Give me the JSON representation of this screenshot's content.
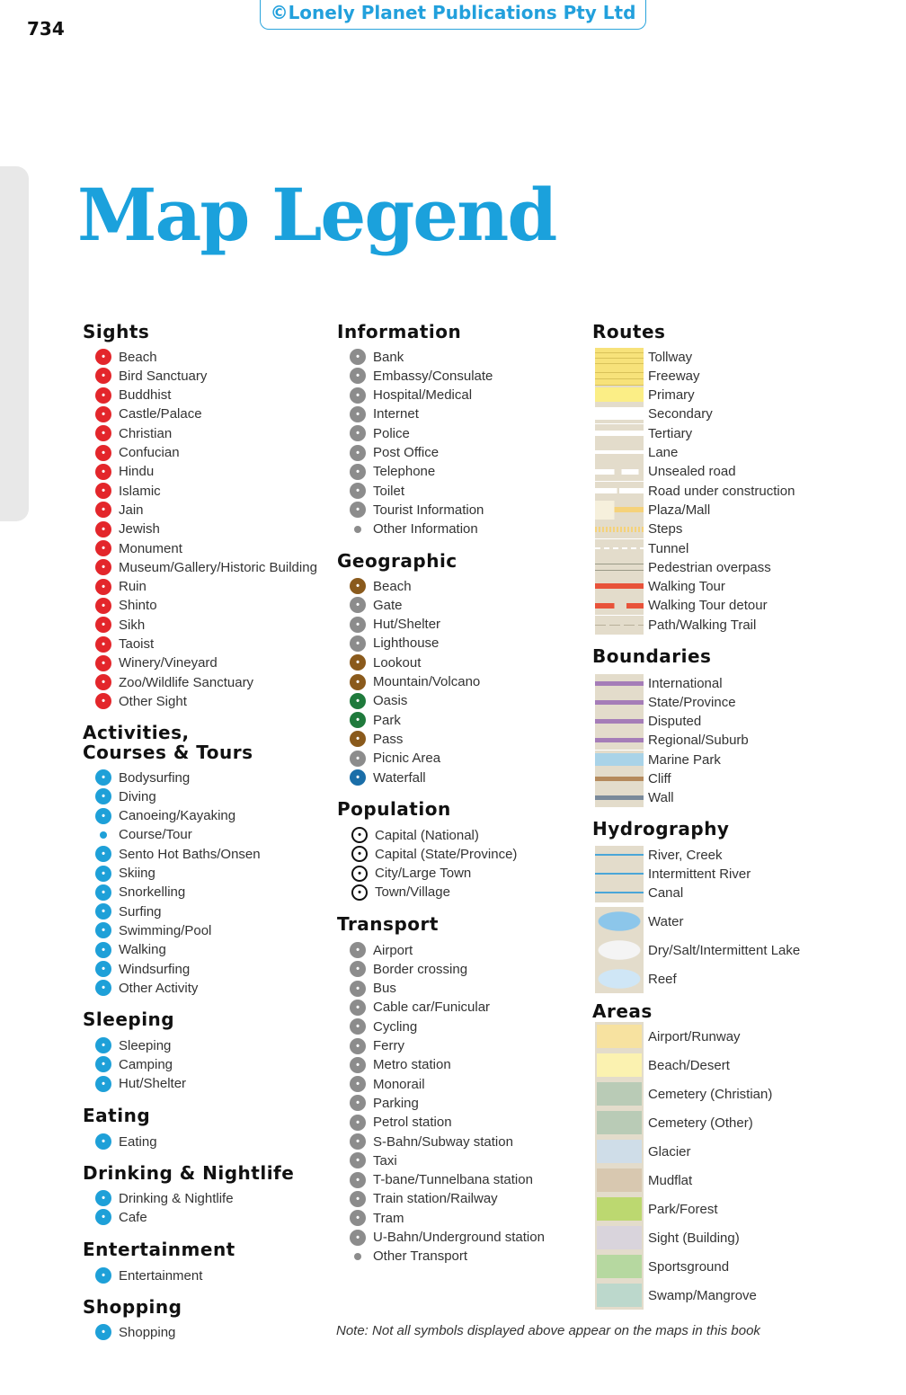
{
  "page_number": "734",
  "publisher": "©Lonely Planet Publications Pty Ltd",
  "title": "Map Legend",
  "note": "Note: Not all symbols displayed above appear on the maps in this book",
  "colors": {
    "accent": "#1ba1dc",
    "sights": "#e3262b",
    "activities": "#1ea0d8",
    "information": "#8c8c8c"
  },
  "columns": [
    {
      "sections": [
        {
          "heading": "Sights",
          "color": "#e3262b",
          "items": [
            "Beach",
            "Bird Sanctuary",
            "Buddhist",
            "Castle/Palace",
            "Christian",
            "Confucian",
            "Hindu",
            "Islamic",
            "Jain",
            "Jewish",
            "Monument",
            "Museum/Gallery/Historic Building",
            "Ruin",
            "Shinto",
            "Sikh",
            "Taoist",
            "Winery/Vineyard",
            "Zoo/Wildlife Sanctuary",
            "Other Sight"
          ]
        },
        {
          "heading": "Activities,\nCourses & Tours",
          "color": "#1ea0d8",
          "items": [
            "Bodysurfing",
            "Diving",
            "Canoeing/Kayaking",
            "Course/Tour",
            "Sento Hot Baths/Onsen",
            "Skiing",
            "Snorkelling",
            "Surfing",
            "Swimming/Pool",
            "Walking",
            "Windsurfing",
            "Other Activity"
          ]
        },
        {
          "heading": "Sleeping",
          "color": "#1ea0d8",
          "items": [
            "Sleeping",
            "Camping",
            "Hut/Shelter"
          ]
        },
        {
          "heading": "Eating",
          "color": "#1ea0d8",
          "items": [
            "Eating"
          ]
        },
        {
          "heading": "Drinking & Nightlife",
          "color": "#1ea0d8",
          "items": [
            "Drinking & Nightlife",
            "Cafe"
          ]
        },
        {
          "heading": "Entertainment",
          "color": "#1ea0d8",
          "items": [
            "Entertainment"
          ]
        },
        {
          "heading": "Shopping",
          "color": "#1ea0d8",
          "items": [
            "Shopping"
          ]
        }
      ]
    },
    {
      "sections": [
        {
          "heading": "Information",
          "color": "#8c8c8c",
          "items": [
            "Bank",
            "Embassy/Consulate",
            "Hospital/Medical",
            "Internet",
            "Police",
            "Post Office",
            "Telephone",
            "Toilet",
            "Tourist Information",
            "Other Information"
          ]
        },
        {
          "heading": "Geographic",
          "color": "#8c8c8c",
          "items": [
            "Beach",
            "Gate",
            "Hut/Shelter",
            "Lighthouse",
            "Lookout",
            "Mountain/Volcano",
            "Oasis",
            "Park",
            "Pass",
            "Picnic Area",
            "Waterfall"
          ]
        },
        {
          "heading": "Population",
          "color": "#111111",
          "items": [
            "Capital (National)",
            "Capital (State/Province)",
            "City/Large Town",
            "Town/Village"
          ]
        },
        {
          "heading": "Transport",
          "color": "#8c8c8c",
          "items": [
            "Airport",
            "Border crossing",
            "Bus",
            "Cable car/Funicular",
            "Cycling",
            "Ferry",
            "Metro station",
            "Monorail",
            "Parking",
            "Petrol station",
            "S-Bahn/Subway station",
            "Taxi",
            "T-bane/Tunnelbana station",
            "Train station/Railway",
            "Tram",
            "U-Bahn/Underground station",
            "Other Transport"
          ]
        }
      ]
    },
    {
      "sections": [
        {
          "heading": "Routes",
          "items": [
            "Tollway",
            "Freeway",
            "Primary",
            "Secondary",
            "Tertiary",
            "Lane",
            "Unsealed road",
            "Road under construction",
            "Plaza/Mall",
            "Steps",
            "Tunnel",
            "Pedestrian overpass",
            "Walking Tour",
            "Walking Tour detour",
            "Path/Walking Trail"
          ]
        },
        {
          "heading": "Boundaries",
          "items": [
            "International",
            "State/Province",
            "Disputed",
            "Regional/Suburb",
            "Marine Park",
            "Cliff",
            "Wall"
          ]
        },
        {
          "heading": "Hydrography",
          "items": [
            "River, Creek",
            "Intermittent River",
            "Canal",
            "Water",
            "Dry/Salt/Intermittent Lake",
            "Reef"
          ]
        },
        {
          "heading": "Areas",
          "items": [
            "Airport/Runway",
            "Beach/Desert",
            "Cemetery (Christian)",
            "Cemetery (Other)",
            "Glacier",
            "Mudflat",
            "Park/Forest",
            "Sight (Building)",
            "Sportsground",
            "Swamp/Mangrove"
          ]
        }
      ]
    }
  ]
}
